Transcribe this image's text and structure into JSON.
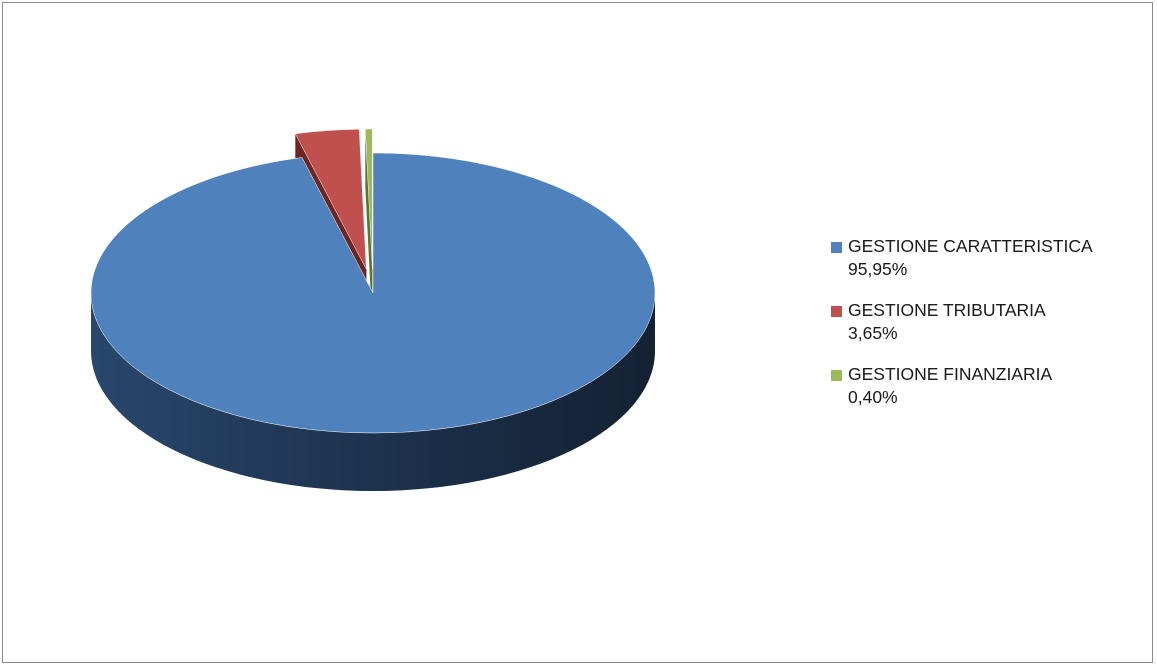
{
  "chart_data": {
    "type": "pie",
    "style": "3d-exploded",
    "legend_position": "right",
    "slices": [
      {
        "label": "GESTIONE CARATTERISTICA",
        "value": 95.95,
        "value_text": "95,95%",
        "color": "#4f81bd",
        "side_color": "#2b4a72"
      },
      {
        "label": "GESTIONE TRIBUTARIA",
        "value": 3.65,
        "value_text": "3,65%",
        "color": "#c0504d",
        "side_color": "#6e2420"
      },
      {
        "label": "GESTIONE FINANZIARIA",
        "value": 0.4,
        "value_text": "0,40%",
        "color": "#9bbb59",
        "side_color": "#5b7530"
      }
    ]
  }
}
